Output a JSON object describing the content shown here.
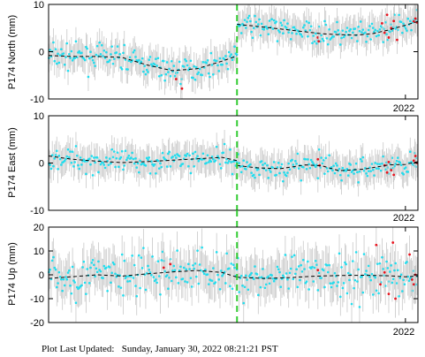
{
  "footer": {
    "label": "Plot Last Updated:",
    "timestamp": "Sunday, January 30, 2022 08:21:21 PST"
  },
  "style": {
    "axes_color": "#000000",
    "errorbar_color": "#c8c8c8",
    "point_color": "#22ddee",
    "recent_point_color": "#e8141e",
    "model_line_color": "#000000",
    "offset_line_color": "#33cc33"
  },
  "chart_data": [
    {
      "type": "scatter",
      "ylabel": "P174 North (mm)",
      "xlabel": "2022",
      "x_tick_label": "2022",
      "x_tick_year": 2022.0,
      "ylim": [
        -10,
        10
      ],
      "yticks": [
        -10,
        0,
        10
      ],
      "xlim": [
        2017.72,
        2022.15
      ],
      "offset_epoch": 2019.98,
      "noise_mm": 1.2,
      "errorbar_mm": 3.0,
      "series": [
        {
          "x": [
            2017.72,
            2018.0,
            2018.3,
            2018.6,
            2018.9,
            2019.2,
            2019.5,
            2019.8,
            2019.98
          ],
          "y": [
            -0.8,
            -1.0,
            -1.0,
            -1.2,
            -2.8,
            -4.0,
            -3.6,
            -2.0,
            -0.9
          ]
        },
        {
          "x": [
            2019.98,
            2020.2,
            2020.5,
            2020.8,
            2021.0,
            2021.2,
            2021.4,
            2021.6,
            2021.8,
            2022.0,
            2022.15
          ],
          "y": [
            5.8,
            5.4,
            4.8,
            4.2,
            3.8,
            3.6,
            3.5,
            3.8,
            4.6,
            5.6,
            6.4
          ]
        }
      ],
      "recent_points": [
        {
          "x": 2019.25,
          "y": -5.8
        },
        {
          "x": 2019.32,
          "y": -7.8
        },
        {
          "x": 2020.95,
          "y": 3.0
        },
        {
          "x": 2020.96,
          "y": 2.2
        },
        {
          "x": 2021.72,
          "y": 6.0
        },
        {
          "x": 2021.75,
          "y": 4.0
        },
        {
          "x": 2021.78,
          "y": 7.8
        },
        {
          "x": 2021.8,
          "y": 3.0
        },
        {
          "x": 2021.83,
          "y": 5.0
        },
        {
          "x": 2021.86,
          "y": 6.5
        },
        {
          "x": 2021.9,
          "y": 2.5
        },
        {
          "x": 2022.1,
          "y": 6.4
        },
        {
          "x": 2022.12,
          "y": 7.0
        },
        {
          "x": 2022.14,
          "y": 6.2
        }
      ]
    },
    {
      "type": "scatter",
      "ylabel": "P174 East (mm)",
      "xlabel": "2022",
      "x_tick_label": "2022",
      "x_tick_year": 2022.0,
      "ylim": [
        -10,
        10
      ],
      "yticks": [
        -10,
        0,
        10
      ],
      "xlim": [
        2017.72,
        2022.15
      ],
      "offset_epoch": 2019.98,
      "noise_mm": 1.2,
      "errorbar_mm": 3.0,
      "series": [
        {
          "x": [
            2017.72,
            2018.0,
            2018.3,
            2018.6,
            2018.9,
            2019.2,
            2019.5,
            2019.8,
            2019.98
          ],
          "y": [
            1.5,
            0.8,
            0.4,
            0.1,
            0.3,
            0.6,
            0.9,
            1.2,
            0.5
          ]
        },
        {
          "x": [
            2019.98,
            2020.2,
            2020.5,
            2020.8,
            2021.0,
            2021.2,
            2021.5,
            2021.8,
            2022.0,
            2022.15
          ],
          "y": [
            -0.5,
            -1.0,
            -1.2,
            -0.4,
            -0.6,
            -1.6,
            -1.3,
            -0.4,
            -0.3,
            0.3
          ]
        }
      ],
      "recent_points": [
        {
          "x": 2020.95,
          "y": 0.8
        },
        {
          "x": 2020.97,
          "y": -0.5
        },
        {
          "x": 2021.75,
          "y": -0.5
        },
        {
          "x": 2021.78,
          "y": -2.0
        },
        {
          "x": 2021.8,
          "y": 0.2
        },
        {
          "x": 2021.83,
          "y": -1.5
        },
        {
          "x": 2021.86,
          "y": -2.5
        },
        {
          "x": 2022.1,
          "y": 0.5
        },
        {
          "x": 2022.12,
          "y": 1.5
        },
        {
          "x": 2022.14,
          "y": 0.0
        }
      ]
    },
    {
      "type": "scatter",
      "ylabel": "P174 Up (mm)",
      "xlabel": "2022",
      "x_tick_label": "2022",
      "x_tick_year": 2022.0,
      "ylim": [
        -20,
        20
      ],
      "yticks": [
        -20,
        -10,
        0,
        10,
        20
      ],
      "xlim": [
        2017.72,
        2022.15
      ],
      "offset_epoch": 2019.98,
      "noise_mm": 4.5,
      "errorbar_mm": 8.0,
      "series": [
        {
          "x": [
            2017.72,
            2018.0,
            2018.3,
            2018.6,
            2018.9,
            2019.2,
            2019.5,
            2019.8,
            2019.98
          ],
          "y": [
            -1.5,
            -0.8,
            0.0,
            -0.5,
            0.4,
            1.2,
            1.8,
            1.0,
            -1.0
          ]
        },
        {
          "x": [
            2019.98,
            2020.3,
            2020.6,
            2020.9,
            2021.2,
            2021.5,
            2021.8,
            2022.0,
            2022.15
          ],
          "y": [
            -1.0,
            -1.5,
            -1.2,
            -0.6,
            -0.3,
            -0.2,
            -0.4,
            -0.8,
            -0.6
          ]
        }
      ],
      "recent_points": [
        {
          "x": 2019.1,
          "y": 3.0
        },
        {
          "x": 2019.18,
          "y": 4.5
        },
        {
          "x": 2020.95,
          "y": 2.0
        },
        {
          "x": 2021.65,
          "y": 12.5
        },
        {
          "x": 2021.7,
          "y": -4.0
        },
        {
          "x": 2021.75,
          "y": 1.0
        },
        {
          "x": 2021.8,
          "y": -8.0
        },
        {
          "x": 2021.85,
          "y": 13.5
        },
        {
          "x": 2021.88,
          "y": -10.0
        },
        {
          "x": 2022.05,
          "y": 8.5
        },
        {
          "x": 2022.08,
          "y": -2.0
        },
        {
          "x": 2022.1,
          "y": -4.0
        },
        {
          "x": 2022.12,
          "y": 0.0
        }
      ]
    }
  ]
}
